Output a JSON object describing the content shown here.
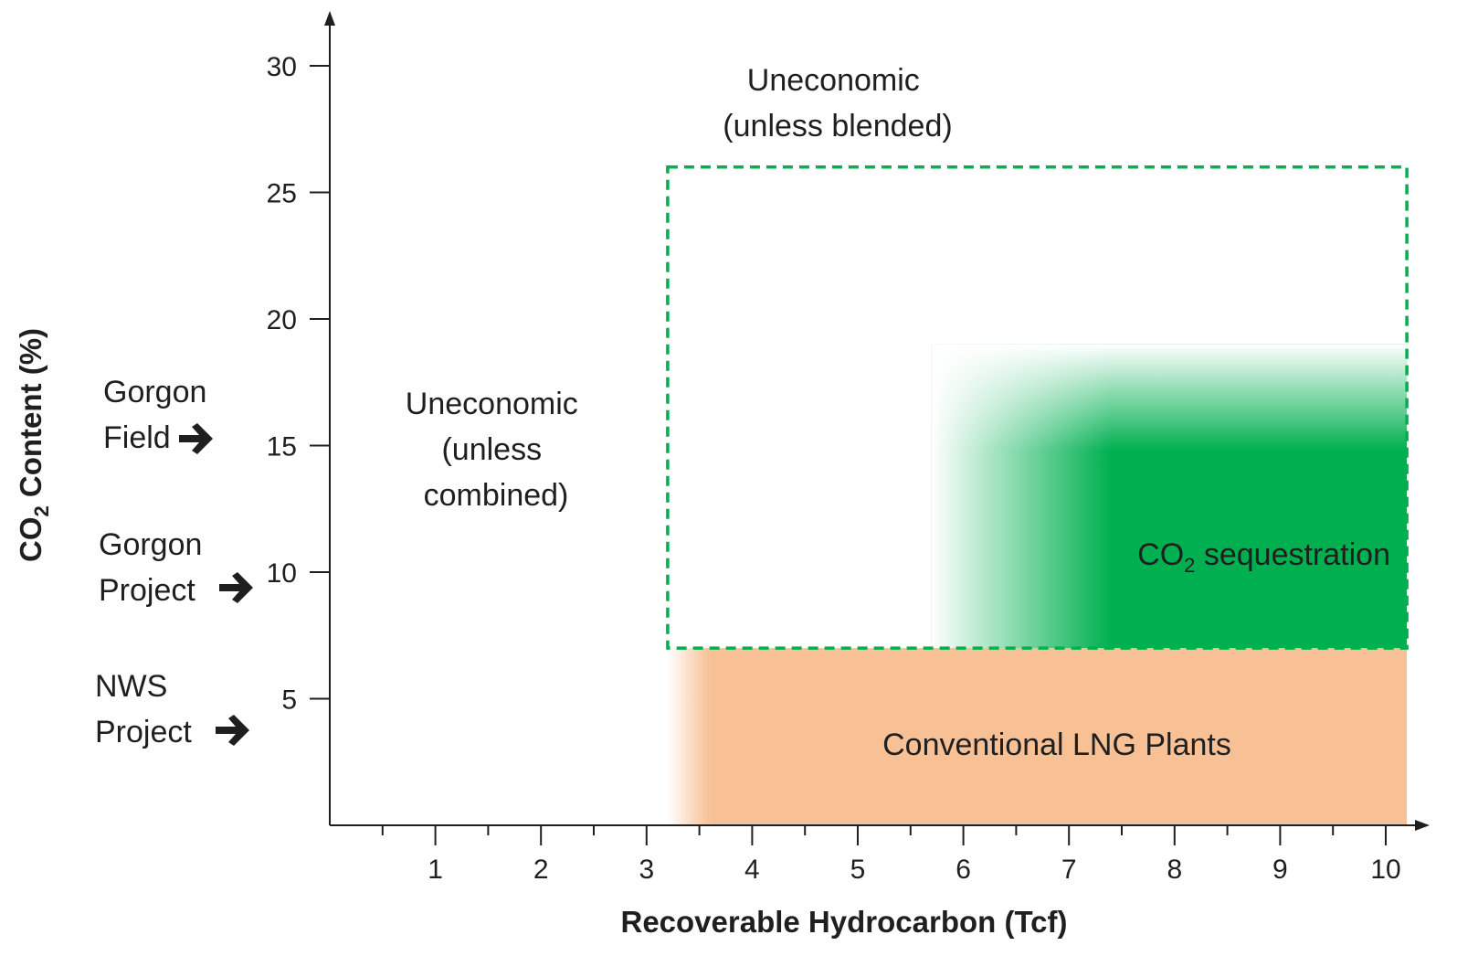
{
  "chart_data": {
    "type": "area",
    "xlabel": "Recoverable Hydrocarbon (Tcf)",
    "ylabel": {
      "prefix": "CO",
      "sub": "2",
      "suffix": " Content (%)"
    },
    "xlim": [
      0,
      10.4
    ],
    "ylim": [
      0,
      30
    ],
    "x_ticks": [
      1,
      2,
      3,
      4,
      5,
      6,
      7,
      8,
      9,
      10
    ],
    "x_minor_ticks": [
      0.5,
      1.5,
      2.5,
      3.5,
      4.5,
      5.5,
      6.5,
      7.5,
      8.5,
      9.5
    ],
    "y_ticks": [
      5,
      10,
      15,
      20,
      25,
      30
    ],
    "grid": false,
    "regions": [
      {
        "name": "lng",
        "label": "Conventional LNG Plants",
        "x": [
          3.2,
          10.2
        ],
        "y": [
          0,
          7
        ],
        "solid_from_x": 3.6,
        "color": "#f8c095",
        "fade": "left"
      },
      {
        "name": "sequestration",
        "label": {
          "prefix": "CO",
          "sub": "2",
          "suffix": " sequestration"
        },
        "x": [
          5.7,
          10.2
        ],
        "y": [
          7,
          19
        ],
        "solid_from_x": 7.4,
        "solid_to_y": 14.8,
        "color": "#00b050",
        "fade": "top-left"
      },
      {
        "name": "blend-box",
        "style": "dashed",
        "x": [
          3.2,
          10.2
        ],
        "y": [
          7,
          26
        ],
        "color": "#00b050"
      }
    ],
    "annotations": [
      {
        "name": "uneconomic-blended",
        "lines": [
          "Uneconomic",
          "(unless blended)"
        ],
        "x": 4.8,
        "y": 28
      },
      {
        "name": "uneconomic-combined",
        "lines": [
          "Uneconomic",
          "(unless",
          "combined)"
        ],
        "x": 1.6,
        "y": 15
      }
    ],
    "markers": [
      {
        "name": "gorgon-field",
        "lines": [
          "Gorgon",
          "Field"
        ],
        "y": 15
      },
      {
        "name": "gorgon-project",
        "lines": [
          "Gorgon",
          "Project"
        ],
        "y": 9
      },
      {
        "name": "nws-project",
        "lines": [
          "NWS",
          "Project"
        ],
        "y": 3.5
      }
    ],
    "colors": {
      "axis": "#1f1f1f",
      "arrow": "#1f1f1f"
    }
  }
}
